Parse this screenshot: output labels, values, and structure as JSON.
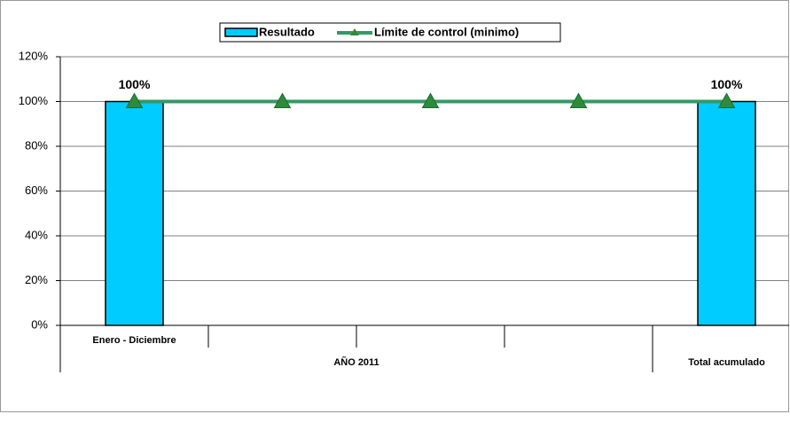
{
  "chart_data": {
    "type": "bar",
    "categories": [
      "Enero - Diciembre",
      null,
      null,
      null,
      "Total acumulado"
    ],
    "group_label": "AÑO 2011",
    "series": [
      {
        "name": "Resultado",
        "type": "bar",
        "color": "#00ccff",
        "values": [
          100,
          null,
          null,
          null,
          100
        ],
        "value_labels": [
          "100%",
          null,
          null,
          null,
          "100%"
        ]
      },
      {
        "name": "Límite de control (minimo)",
        "type": "line",
        "color": "#339966",
        "values": [
          100,
          100,
          100,
          100,
          100
        ]
      }
    ],
    "ylim": [
      0,
      120
    ],
    "yticks": [
      {
        "value": 0,
        "label": "0%"
      },
      {
        "value": 20,
        "label": "20%"
      },
      {
        "value": 40,
        "label": "40%"
      },
      {
        "value": 60,
        "label": "60%"
      },
      {
        "value": 80,
        "label": "80%"
      },
      {
        "value": 100,
        "label": "100%"
      },
      {
        "value": 120,
        "label": "120%"
      }
    ],
    "grid": true,
    "legend": "top"
  }
}
